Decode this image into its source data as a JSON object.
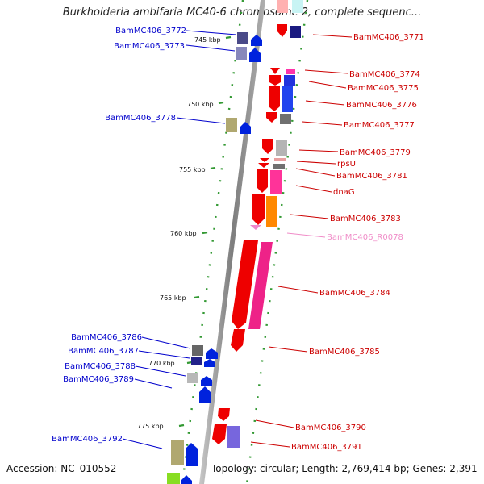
{
  "title": "Burkholderia ambifaria MC40-6 chromosome 2, complete sequenc...",
  "footer": {
    "accession": "Accession: NC_010552",
    "summary": "Topology: circular; Length: 2,769,414 bp; Genes: 2,391"
  },
  "colors": {
    "backbone": "#8a8a8a",
    "tick": "#339933",
    "left_label": "#0000cc",
    "right_label": "#cc0000",
    "rna_label": "#f08cc8"
  },
  "scale": [
    {
      "label": "745 kbp",
      "kbp": 745
    },
    {
      "label": "750 kbp",
      "kbp": 750
    },
    {
      "label": "755 kbp",
      "kbp": 755
    },
    {
      "label": "760 kbp",
      "kbp": 760
    },
    {
      "label": "765 kbp",
      "kbp": 765
    },
    {
      "label": "770 kbp",
      "kbp": 770
    },
    {
      "label": "775 kbp",
      "kbp": 775
    }
  ],
  "left_genes": [
    {
      "name": "BamMC406_3772"
    },
    {
      "name": "BamMC406_3773"
    },
    {
      "name": "BamMC406_3778"
    },
    {
      "name": "BamMC406_3786"
    },
    {
      "name": "BamMC406_3787"
    },
    {
      "name": "BamMC406_3788"
    },
    {
      "name": "BamMC406_3789"
    },
    {
      "name": "BamMC406_3792"
    }
  ],
  "right_genes": [
    {
      "name": "BamMC406_3771"
    },
    {
      "name": "BamMC406_3774"
    },
    {
      "name": "BamMC406_3775"
    },
    {
      "name": "BamMC406_3776"
    },
    {
      "name": "BamMC406_3777"
    },
    {
      "name": "BamMC406_3779"
    },
    {
      "name": "rpsU"
    },
    {
      "name": "BamMC406_3781"
    },
    {
      "name": "dnaG"
    },
    {
      "name": "BamMC406_3783"
    },
    {
      "name": "BamMC406_R0078"
    },
    {
      "name": "BamMC406_3784"
    },
    {
      "name": "BamMC406_3785"
    },
    {
      "name": "BamMC406_3790"
    },
    {
      "name": "BamMC406_3791"
    }
  ]
}
